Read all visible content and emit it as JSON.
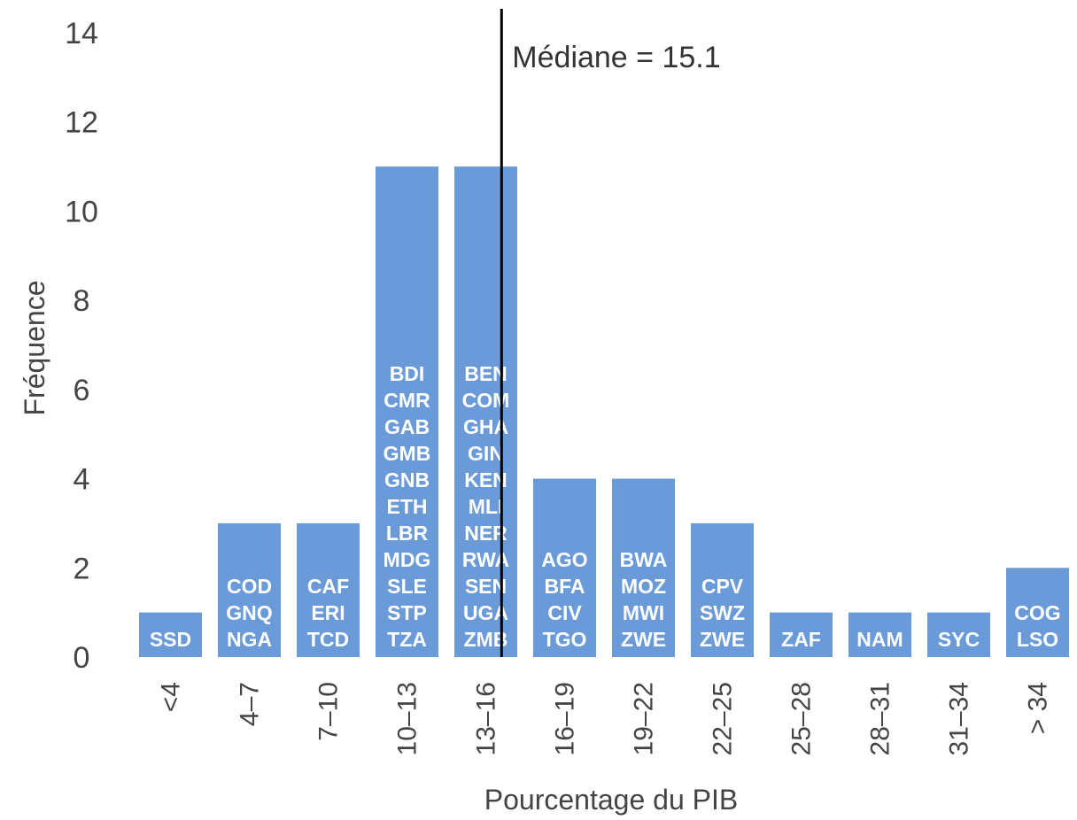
{
  "chart_data": {
    "type": "bar",
    "xlabel": "Pourcentage du PIB",
    "ylabel": "Fréquence",
    "ylim": [
      0,
      14
    ],
    "yticks": [
      0,
      2,
      4,
      6,
      8,
      10,
      12,
      14
    ],
    "grid": false,
    "legend": "none",
    "bar_color": "#6a9bd8",
    "categories": [
      "<4",
      "4–7",
      "7–10",
      "10–13",
      "13–16",
      "16–19",
      "19–22",
      "22–25",
      "25–28",
      "28–31",
      "31–34",
      "> 34"
    ],
    "values": [
      1,
      3,
      3,
      11,
      11,
      4,
      4,
      3,
      1,
      1,
      1,
      2
    ],
    "bar_labels": [
      [
        "SSD"
      ],
      [
        "COD",
        "GNQ",
        "NGA"
      ],
      [
        "CAF",
        "ERI",
        "TCD"
      ],
      [
        "BDI",
        "CMR",
        "GAB",
        "GMB",
        "GNB",
        "ETH",
        "LBR",
        "MDG",
        "SLE",
        "STP",
        "TZA"
      ],
      [
        "BEN",
        "COM",
        "GHA",
        "GIN",
        "KEN",
        "MLI",
        "NER",
        "RWA",
        "SEN",
        "UGA",
        "ZMB"
      ],
      [
        "AGO",
        "BFA",
        "CIV",
        "TGO"
      ],
      [
        "BWA",
        "MOZ",
        "MWI",
        "ZWE"
      ],
      [
        "CPV",
        "SWZ",
        "ZWE"
      ],
      [
        "ZAF"
      ],
      [
        "NAM"
      ],
      [
        "SYC"
      ],
      [
        "COG",
        "LSO"
      ]
    ],
    "median": {
      "value": 15.1,
      "label": "Médiane = 15.1"
    }
  }
}
